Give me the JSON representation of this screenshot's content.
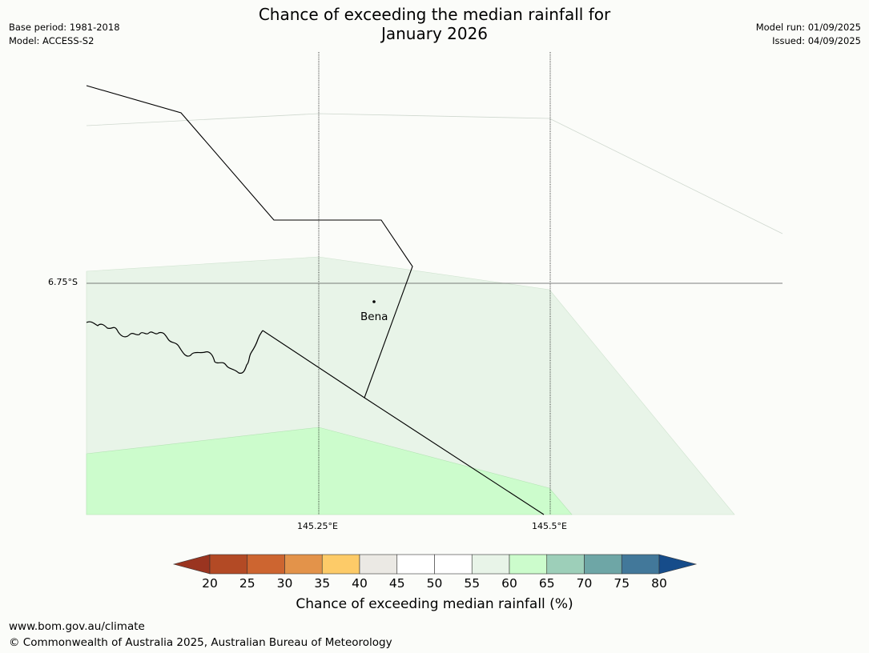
{
  "title_line1": "Chance of exceeding the median rainfall for",
  "title_line2": "January 2026",
  "meta_left": {
    "base_period": "Base period: 1981-2018",
    "model": "Model: ACCESS-S2"
  },
  "meta_right": {
    "model_run": "Model run: 01/09/2025",
    "issued": "Issued: 04/09/2025"
  },
  "map": {
    "lat_label": "6.75°S",
    "lon_labels": [
      "145.25°E",
      "145.5°E"
    ],
    "place_label": "Bena",
    "fill_colors": {
      "55-60": "#e8f4e8",
      "60-65": "#ccfccc"
    }
  },
  "colorbar": {
    "ticks": [
      "20",
      "25",
      "30",
      "35",
      "40",
      "45",
      "50",
      "55",
      "60",
      "65",
      "70",
      "75",
      "80"
    ],
    "colors": [
      "#9a3420",
      "#b34a25",
      "#cd6530",
      "#e3934a",
      "#fdcb68",
      "#ebe9e4",
      "#ffffff",
      "#ffffff",
      "#e8f4e8",
      "#ccfccc",
      "#9dcfb9",
      "#6ea6a6",
      "#42789a",
      "#164c8a"
    ],
    "label": "Chance of exceeding median rainfall (%)"
  },
  "footer": {
    "url": "www.bom.gov.au/climate",
    "copyright": "© Commonwealth of Australia 2025, Australian Bureau of Meteorology"
  }
}
